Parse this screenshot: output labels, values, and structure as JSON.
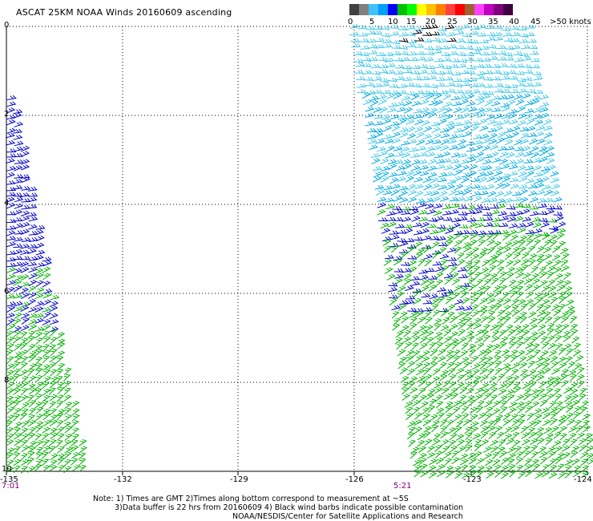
{
  "title": "ASCAT 25KM NOAA Winds 20160609 ascending",
  "legend": {
    "labels": [
      "0",
      "5",
      "10",
      "15",
      "20",
      "25",
      "30",
      "35",
      "40",
      "45",
      ">50 knots"
    ],
    "colors": [
      "#404040",
      "#808080",
      "#40c0ff",
      "#00a0ff",
      "#0000ff",
      "#00c000",
      "#00ff00",
      "#ffff00",
      "#ffc000",
      "#ff8000",
      "#ff4040",
      "#ff0000",
      "#a06030",
      "#ff40ff",
      "#c000c0",
      "#800080",
      "#400040"
    ]
  },
  "axes": {
    "y_ticks": [
      "0",
      "2",
      "4",
      "6",
      "8",
      "10"
    ],
    "x_ticks": [
      "-135",
      "-132",
      "-129",
      "-126",
      "-123",
      "-124"
    ]
  },
  "pass_times": [
    "7:01",
    "5:21"
  ],
  "notes": [
    "Note: 1) Times are GMT 2)Times along bottom correspond to measurement at ~5S",
    "3)Data buffer is 22 hrs from 20160609 4) Black wind barbs indicate possible contamination",
    "NOAA/NESDIS/Center for Satellite Applications and Research"
  ],
  "wind_colors": {
    "light_cyan": "#40c8e8",
    "cyan": "#00a8e0",
    "blue": "#0000cc",
    "green": "#00b000",
    "black": "#000000"
  }
}
